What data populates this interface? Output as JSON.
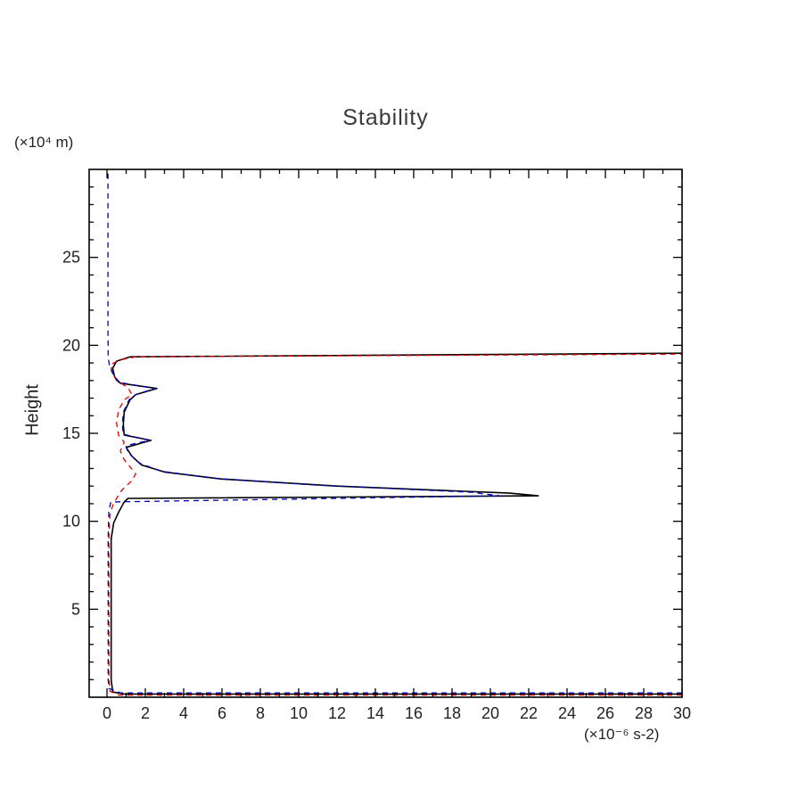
{
  "page": {
    "title": "Stability",
    "y_axis_label": "Height",
    "y_unit_label": "(×10⁴ m)",
    "x_unit_label": "(×10⁻⁶ s-2)"
  },
  "chart_data": {
    "type": "line",
    "title": "Stability",
    "xlabel": "(×10⁻⁶ s-2)",
    "ylabel": "Height (×10⁴ m)",
    "xlim": [
      -0.93,
      30
    ],
    "ylim": [
      0,
      30
    ],
    "x_ticks_major": [
      0,
      2,
      4,
      6,
      8,
      10,
      12,
      14,
      16,
      18,
      20,
      22,
      24,
      26,
      28,
      30
    ],
    "x_minor_step": 1,
    "y_ticks_major": [
      5,
      10,
      15,
      20,
      25
    ],
    "y_minor_step": 1,
    "grid": false,
    "legend": null,
    "frame_color": "#000000",
    "series": [
      {
        "name": "black-solid",
        "color": "#000000",
        "dash": null,
        "width": 1.6,
        "points": [
          [
            30,
            0.18
          ],
          [
            0.9,
            0.18
          ],
          [
            0.3,
            0.3
          ],
          [
            0.22,
            1
          ],
          [
            0.22,
            9
          ],
          [
            0.35,
            9.9
          ],
          [
            0.6,
            10.5
          ],
          [
            0.9,
            11.1
          ],
          [
            1.1,
            11.3
          ],
          [
            22.5,
            11.45
          ],
          [
            21,
            11.6
          ],
          [
            12,
            12.0
          ],
          [
            6,
            12.4
          ],
          [
            3,
            12.8
          ],
          [
            1.8,
            13.2
          ],
          [
            1.3,
            13.7
          ],
          [
            1.0,
            14.2
          ],
          [
            2.3,
            14.6
          ],
          [
            0.9,
            14.9
          ],
          [
            0.85,
            15.5
          ],
          [
            0.9,
            16.2
          ],
          [
            1.2,
            16.9
          ],
          [
            1.5,
            17.2
          ],
          [
            2.6,
            17.55
          ],
          [
            0.7,
            17.85
          ],
          [
            0.4,
            18.2
          ],
          [
            0.3,
            18.7
          ],
          [
            0.5,
            19.1
          ],
          [
            1.2,
            19.35
          ],
          [
            30,
            19.55
          ]
        ]
      },
      {
        "name": "red-dashed",
        "color": "#dd0000",
        "dash": "6 5",
        "width": 1.3,
        "points": [
          [
            30,
            0.12
          ],
          [
            0.6,
            0.12
          ],
          [
            0.15,
            0.35
          ],
          [
            0.1,
            1
          ],
          [
            0.1,
            9.2
          ],
          [
            0.15,
            10.3
          ],
          [
            0.3,
            10.9
          ],
          [
            0.5,
            11.3
          ],
          [
            0.8,
            11.8
          ],
          [
            1.3,
            12.3
          ],
          [
            1.5,
            12.7
          ],
          [
            1.2,
            13.1
          ],
          [
            0.9,
            13.5
          ],
          [
            0.7,
            14.0
          ],
          [
            0.9,
            14.5
          ],
          [
            0.6,
            14.9
          ],
          [
            0.5,
            15.6
          ],
          [
            0.6,
            16.3
          ],
          [
            0.9,
            16.9
          ],
          [
            1.3,
            17.2
          ],
          [
            1.1,
            17.6
          ],
          [
            0.5,
            18.0
          ],
          [
            0.25,
            18.5
          ],
          [
            0.2,
            18.9
          ],
          [
            0.6,
            19.15
          ],
          [
            1.5,
            19.35
          ],
          [
            30,
            19.5
          ]
        ]
      },
      {
        "name": "blue-dashed",
        "color": "#0000bb",
        "dash": "6 5",
        "width": 1.3,
        "points": [
          [
            30,
            0.25
          ],
          [
            0.7,
            0.25
          ],
          [
            0.1,
            0.5
          ],
          [
            0.06,
            1
          ],
          [
            0.06,
            9
          ],
          [
            0.1,
            10.6
          ],
          [
            0.2,
            11.1
          ],
          [
            20.5,
            11.45
          ],
          [
            19,
            11.65
          ],
          [
            11,
            12.05
          ],
          [
            5.5,
            12.45
          ],
          [
            2.8,
            12.85
          ],
          [
            1.7,
            13.3
          ],
          [
            1.1,
            13.9
          ],
          [
            1.0,
            14.3
          ],
          [
            2.2,
            14.6
          ],
          [
            0.85,
            14.95
          ],
          [
            0.8,
            15.5
          ],
          [
            0.85,
            16.2
          ],
          [
            1.15,
            16.9
          ],
          [
            1.5,
            17.2
          ],
          [
            2.5,
            17.55
          ],
          [
            0.6,
            17.9
          ],
          [
            0.3,
            18.4
          ],
          [
            0.12,
            18.9
          ],
          [
            0.06,
            19.3
          ],
          [
            0.05,
            21
          ],
          [
            0.05,
            30
          ]
        ]
      }
    ]
  }
}
